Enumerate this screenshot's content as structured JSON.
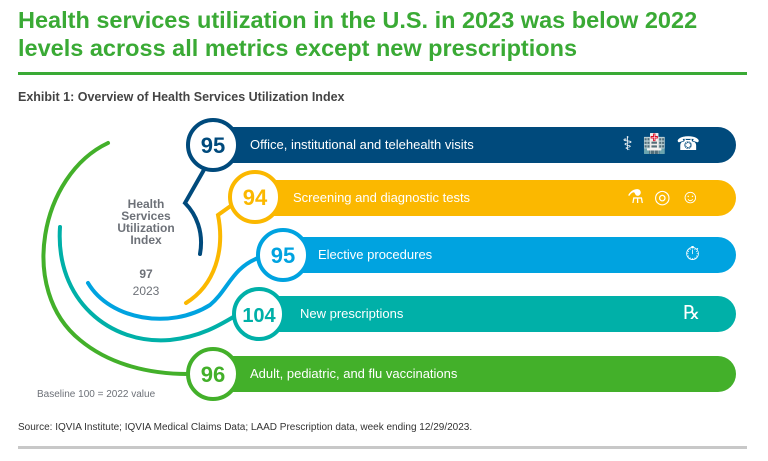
{
  "title": "Health services utilization in the U.S. in 2023 was below 2022 levels across all metrics except new prescriptions",
  "exhibit": "Exhibit 1: Overview of Health Services Utilization Index",
  "index": {
    "label_lines": [
      "Health",
      "Services",
      "Utilization",
      "Index"
    ],
    "value": "97",
    "year": "2023"
  },
  "baseline_note": "Baseline 100 = 2022 value",
  "metrics": [
    {
      "value": "95",
      "label": "Office, institutional and telehealth visits",
      "color": "#004a7c",
      "icons": [
        "doctor-icon",
        "hospital-icon",
        "telehealth-icon",
        "telephone-icon"
      ]
    },
    {
      "value": "94",
      "label": "Screening and diagnostic tests",
      "color": "#fbb800",
      "icons": [
        "test-tubes-icon",
        "mri-scanner-icon",
        "xray-icon"
      ]
    },
    {
      "value": "95",
      "label": "Elective procedures",
      "color": "#00a3e0",
      "icons": [
        "gurney-clock-icon"
      ]
    },
    {
      "value": "104",
      "label": "New prescriptions",
      "color": "#00b0a8",
      "icons": [
        "rx-mortar-icon"
      ]
    },
    {
      "value": "96",
      "label": "Adult, pediatric, and flu vaccinations",
      "color": "#43b02a",
      "icons": []
    }
  ],
  "source": "Source: IQVIA Institute; IQVIA Medical Claims Data; LAAD Prescription data, week ending 12/29/2023."
}
